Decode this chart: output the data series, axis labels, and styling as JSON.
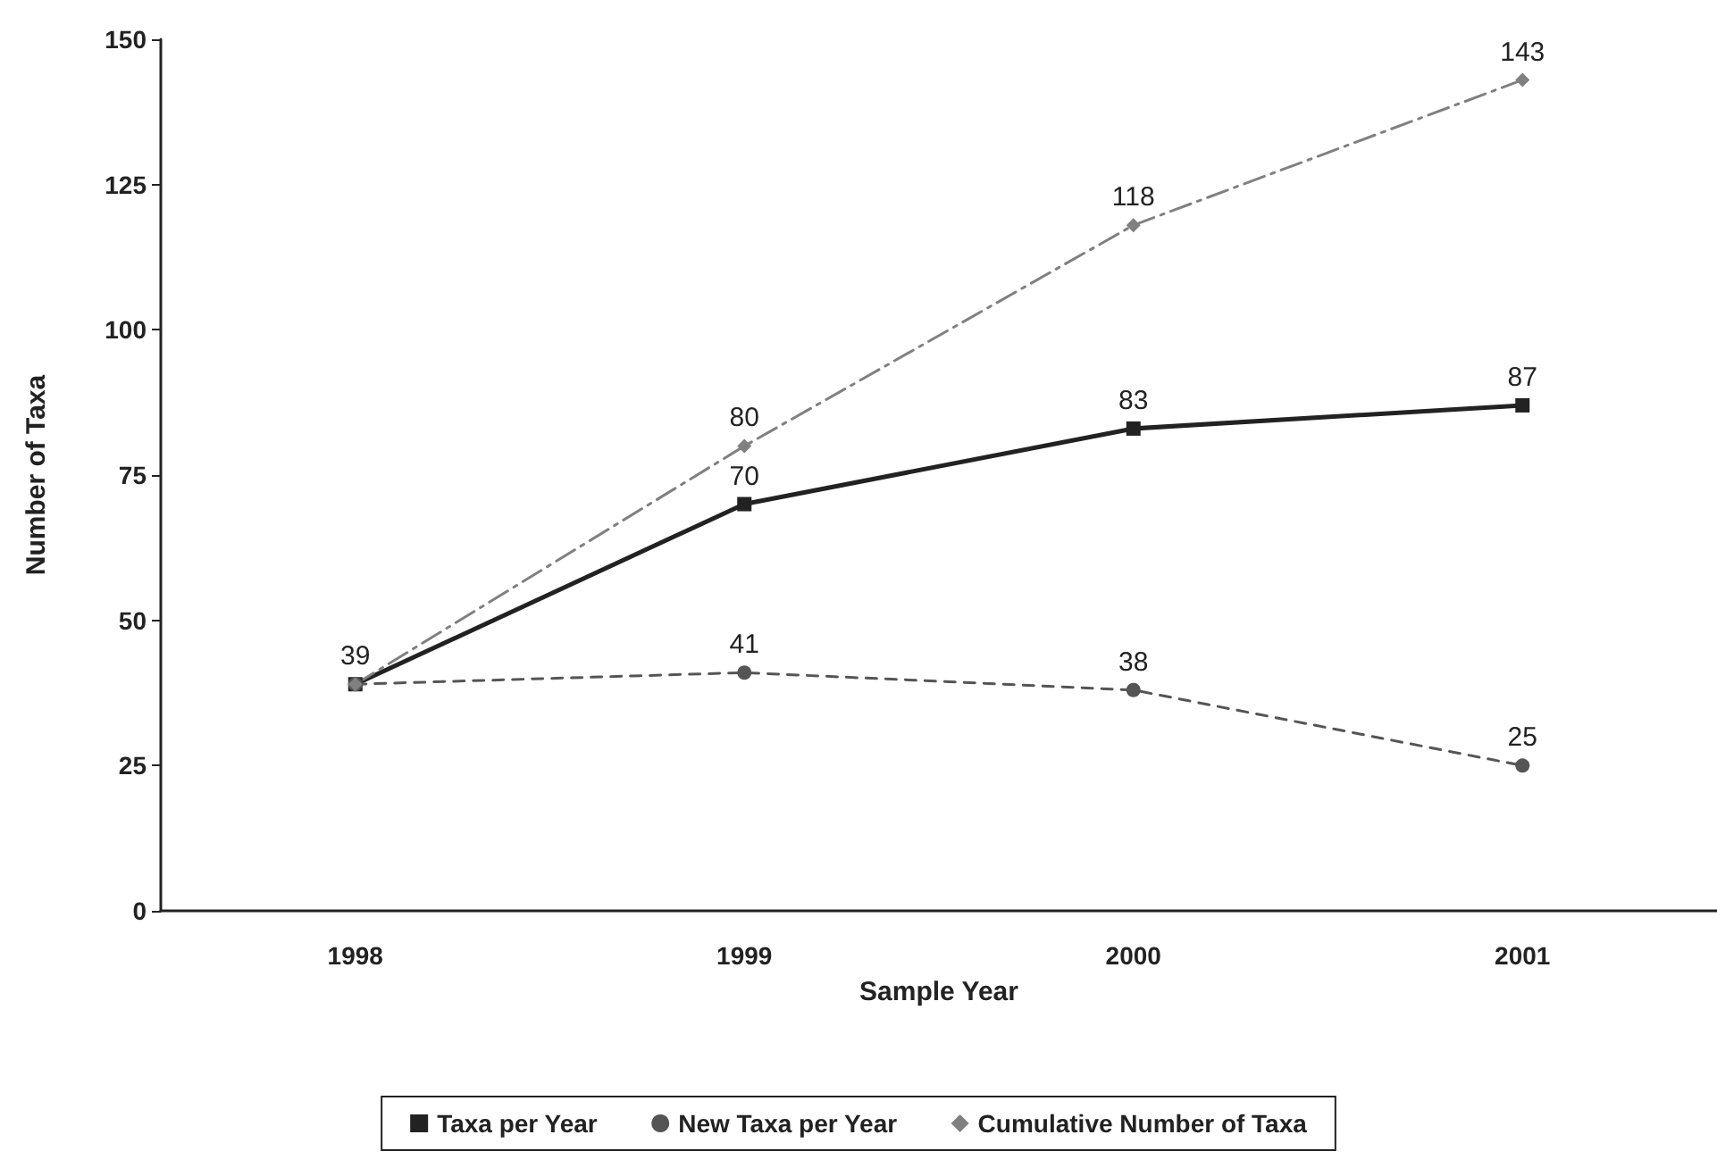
{
  "chart_data": {
    "type": "line",
    "categories": [
      "1998",
      "1999",
      "2000",
      "2001"
    ],
    "xlabel": "Sample Year",
    "ylabel": "Number of Taxa",
    "ylim": [
      0,
      150
    ],
    "yticks": [
      0,
      25,
      50,
      75,
      100,
      125,
      150
    ],
    "grid": false,
    "legend": "bottom",
    "series": [
      {
        "name": "Taxa per Year",
        "color": "#222222",
        "values": [
          39,
          70,
          83,
          87
        ],
        "value_labels": [
          "39",
          "70",
          "83",
          "87"
        ],
        "marker": "square",
        "line_style": "solid"
      },
      {
        "name": "New Taxa per Year",
        "color": "#555555",
        "values": [
          39,
          41,
          38,
          25
        ],
        "value_labels": [
          null,
          "41",
          "38",
          "25"
        ],
        "marker": "circle",
        "line_style": "dashed"
      },
      {
        "name": "Cumulative Number of Taxa",
        "color": "#808080",
        "values": [
          39,
          80,
          118,
          143
        ],
        "value_labels": [
          null,
          "80",
          "118",
          "143"
        ],
        "marker": "diamond",
        "line_style": "dashdot"
      }
    ]
  }
}
